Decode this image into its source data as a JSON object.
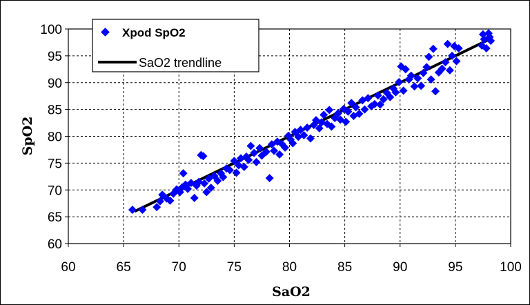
{
  "chart_data": {
    "type": "scatter",
    "xlabel": "SaO2",
    "ylabel": "SpO2",
    "xlim": [
      60,
      100
    ],
    "ylim": [
      60,
      100
    ],
    "x_ticks": [
      60,
      65,
      70,
      75,
      80,
      85,
      90,
      95,
      100
    ],
    "y_ticks": [
      60,
      65,
      70,
      75,
      80,
      85,
      90,
      95,
      100
    ],
    "grid": true,
    "legend_position": "top-left",
    "series": [
      {
        "name": "Xpod SpO2",
        "kind": "scatter",
        "marker": "diamond",
        "color": "#0000ff",
        "points": [
          [
            65.8,
            66.3
          ],
          [
            66.7,
            66.3
          ],
          [
            68.0,
            66.8
          ],
          [
            68.3,
            67.9
          ],
          [
            68.5,
            69.1
          ],
          [
            68.9,
            68.4
          ],
          [
            69.2,
            68.0
          ],
          [
            69.5,
            69.3
          ],
          [
            69.8,
            70.1
          ],
          [
            70.1,
            69.6
          ],
          [
            70.3,
            70.5
          ],
          [
            70.4,
            73.1
          ],
          [
            70.6,
            71.0
          ],
          [
            70.8,
            70.2
          ],
          [
            71.1,
            71.3
          ],
          [
            71.4,
            68.5
          ],
          [
            71.6,
            70.8
          ],
          [
            71.8,
            71.5
          ],
          [
            72.0,
            76.5
          ],
          [
            72.2,
            76.3
          ],
          [
            72.3,
            71.2
          ],
          [
            72.5,
            69.6
          ],
          [
            72.7,
            72.1
          ],
          [
            72.9,
            70.4
          ],
          [
            73.2,
            72.6
          ],
          [
            73.5,
            71.7
          ],
          [
            73.8,
            73.1
          ],
          [
            74.0,
            72.4
          ],
          [
            74.3,
            74.0
          ],
          [
            74.6,
            73.7
          ],
          [
            75.0,
            75.4
          ],
          [
            75.2,
            73.2
          ],
          [
            75.4,
            74.6
          ],
          [
            75.6,
            75.9
          ],
          [
            75.9,
            74.3
          ],
          [
            76.1,
            76.2
          ],
          [
            76.3,
            75.6
          ],
          [
            76.5,
            78.2
          ],
          [
            76.8,
            76.9
          ],
          [
            77.0,
            75.2
          ],
          [
            77.3,
            77.8
          ],
          [
            77.5,
            76.4
          ],
          [
            77.9,
            77.1
          ],
          [
            78.2,
            72.2
          ],
          [
            78.4,
            78.5
          ],
          [
            78.6,
            77.3
          ],
          [
            78.9,
            79.0
          ],
          [
            79.1,
            76.6
          ],
          [
            79.3,
            78.6
          ],
          [
            79.6,
            77.9
          ],
          [
            79.9,
            80.1
          ],
          [
            80.1,
            79.4
          ],
          [
            80.3,
            78.7
          ],
          [
            80.5,
            80.8
          ],
          [
            80.8,
            79.9
          ],
          [
            81.0,
            81.2
          ],
          [
            81.3,
            80.2
          ],
          [
            81.6,
            81.6
          ],
          [
            81.9,
            79.6
          ],
          [
            82.2,
            82.1
          ],
          [
            82.4,
            83.0
          ],
          [
            82.7,
            81.5
          ],
          [
            82.9,
            82.6
          ],
          [
            83.1,
            84.0
          ],
          [
            83.4,
            82.3
          ],
          [
            83.6,
            84.9
          ],
          [
            83.8,
            81.8
          ],
          [
            84.1,
            83.4
          ],
          [
            84.4,
            84.3
          ],
          [
            84.6,
            83.1
          ],
          [
            84.9,
            85.1
          ],
          [
            85.1,
            82.7
          ],
          [
            85.3,
            84.6
          ],
          [
            85.6,
            86.2
          ],
          [
            85.8,
            83.8
          ],
          [
            86.0,
            85.4
          ],
          [
            86.3,
            84.2
          ],
          [
            86.6,
            86.7
          ],
          [
            86.8,
            85.0
          ],
          [
            87.1,
            87.1
          ],
          [
            87.4,
            85.6
          ],
          [
            87.7,
            86.0
          ],
          [
            88.0,
            87.6
          ],
          [
            88.2,
            85.9
          ],
          [
            88.5,
            86.9
          ],
          [
            88.8,
            88.1
          ],
          [
            89.1,
            87.3
          ],
          [
            89.4,
            88.9
          ],
          [
            89.6,
            88.2
          ],
          [
            89.9,
            90.1
          ],
          [
            90.1,
            93.0
          ],
          [
            90.3,
            88.5
          ],
          [
            90.5,
            92.5
          ],
          [
            90.8,
            90.6
          ],
          [
            91.0,
            91.3
          ],
          [
            91.3,
            89.3
          ],
          [
            91.6,
            90.8
          ],
          [
            91.9,
            89.4
          ],
          [
            92.1,
            91.8
          ],
          [
            92.4,
            92.9
          ],
          [
            92.6,
            94.8
          ],
          [
            92.8,
            90.6
          ],
          [
            93.0,
            96.3
          ],
          [
            93.2,
            88.4
          ],
          [
            93.5,
            91.9
          ],
          [
            93.8,
            92.6
          ],
          [
            94.1,
            93.8
          ],
          [
            94.3,
            97.2
          ],
          [
            94.5,
            92.3
          ],
          [
            94.7,
            95.0
          ],
          [
            94.9,
            96.8
          ],
          [
            95.1,
            94.0
          ],
          [
            95.3,
            96.4
          ],
          [
            97.4,
            96.9
          ],
          [
            97.6,
            98.1
          ],
          [
            97.8,
            96.4
          ],
          [
            98.0,
            99.2
          ],
          [
            98.2,
            97.8
          ],
          [
            97.5,
            99.0
          ],
          [
            98.1,
            98.5
          ]
        ]
      },
      {
        "name": "SaO2 trendline",
        "kind": "line",
        "color": "#000000",
        "points": [
          [
            66.0,
            66.0
          ],
          [
            98.0,
            98.0
          ]
        ]
      }
    ]
  }
}
